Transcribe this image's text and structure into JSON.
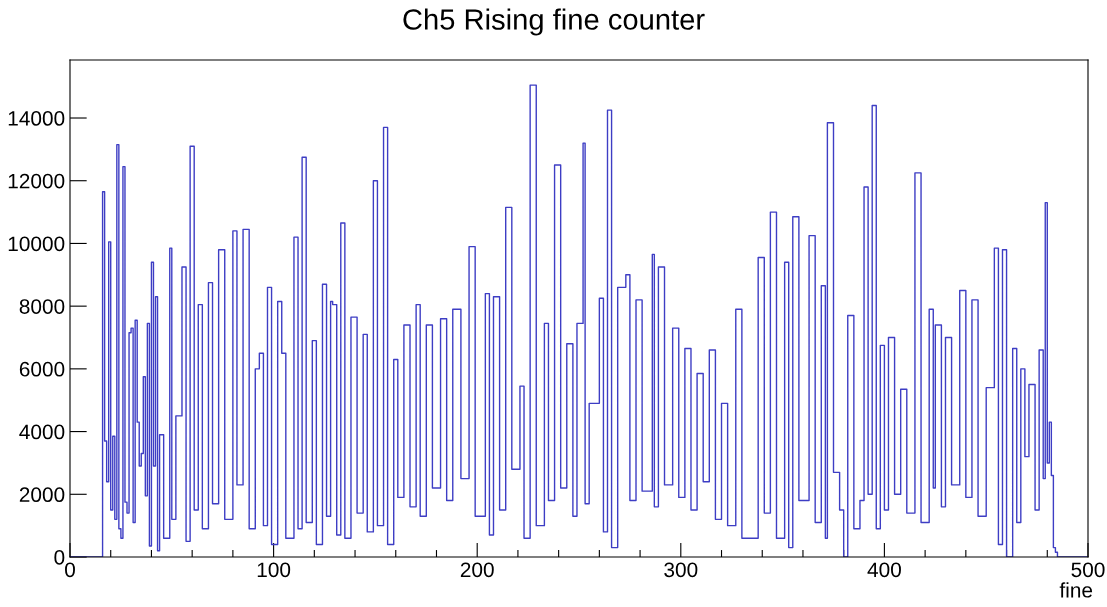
{
  "chart_data": {
    "type": "step",
    "title": "Ch5 Rising fine counter",
    "xlabel": "fine",
    "color": "#3d3dc4",
    "grid": false,
    "xlim": [
      0,
      500
    ],
    "ylim": [
      0,
      15850
    ],
    "xticks": [
      0,
      {
        "value": 20,
        "label": null
      },
      {
        "value": 40,
        "label": null
      },
      {
        "value": 60,
        "label": null
      },
      {
        "value": 80,
        "label": null
      },
      100,
      {
        "value": 120,
        "label": null
      },
      {
        "value": 140,
        "label": null
      },
      {
        "value": 160,
        "label": null
      },
      {
        "value": 180,
        "label": null
      },
      200,
      {
        "value": 220,
        "label": null
      },
      {
        "value": 240,
        "label": null
      },
      {
        "value": 260,
        "label": null
      },
      {
        "value": 280,
        "label": null
      },
      300,
      {
        "value": 320,
        "label": null
      },
      {
        "value": 340,
        "label": null
      },
      {
        "value": 360,
        "label": null
      },
      {
        "value": 380,
        "label": null
      },
      400,
      {
        "value": 420,
        "label": null
      },
      {
        "value": 440,
        "label": null
      },
      {
        "value": 460,
        "label": null
      },
      {
        "value": 480,
        "label": null
      },
      500
    ],
    "yticks": [
      0,
      2000,
      4000,
      6000,
      8000,
      10000,
      12000,
      14000
    ],
    "x": [
      0,
      16,
      17,
      18,
      19,
      20,
      21,
      22,
      23,
      24,
      25,
      26,
      27,
      28,
      29,
      30,
      31,
      32,
      33,
      34,
      35,
      36,
      37,
      38,
      39,
      40,
      41,
      42,
      43,
      44,
      46,
      49,
      50,
      52,
      55,
      57,
      59,
      61,
      63,
      65,
      68,
      70,
      73,
      76,
      80,
      82,
      85,
      88,
      91,
      93,
      95,
      97,
      99,
      102,
      104,
      106,
      110,
      112,
      114,
      116,
      119,
      121,
      124,
      126,
      128,
      129,
      131,
      133,
      135,
      138,
      141,
      144,
      146,
      149,
      151,
      154,
      156,
      159,
      161,
      164,
      167,
      170,
      172,
      175,
      178,
      182,
      185,
      188,
      192,
      196,
      199,
      204,
      206,
      208,
      211,
      214,
      217,
      221,
      223,
      226,
      229,
      233,
      235,
      238,
      241,
      244,
      247,
      249,
      252,
      253,
      255,
      260,
      262,
      264,
      266,
      269,
      273,
      275,
      278,
      281,
      286,
      287,
      289,
      292,
      296,
      299,
      302,
      305,
      308,
      311,
      314,
      317,
      320,
      323,
      327,
      330,
      338,
      341,
      344,
      347,
      351,
      353,
      355,
      358,
      363,
      366,
      369,
      371,
      372,
      375,
      378,
      380,
      382,
      385,
      388,
      390,
      392,
      394,
      396,
      398,
      400,
      402,
      405,
      408,
      411,
      415,
      418,
      422,
      424,
      425,
      428,
      430,
      433,
      437,
      440,
      443,
      446,
      450,
      454,
      456,
      458,
      460,
      463,
      465,
      467,
      469,
      471,
      474,
      476,
      478,
      479,
      480,
      481,
      482,
      483,
      484,
      485,
      500
    ],
    "values": [
      0,
      11650,
      3700,
      2400,
      10050,
      1500,
      3850,
      1200,
      13150,
      900,
      600,
      12450,
      1750,
      1400,
      7150,
      7300,
      1100,
      7550,
      4300,
      2900,
      3300,
      5750,
      1950,
      7450,
      350,
      9400,
      2900,
      8300,
      200,
      3900,
      600,
      9850,
      1200,
      4500,
      9250,
      500,
      13100,
      1500,
      8050,
      900,
      8750,
      1700,
      9800,
      1200,
      10400,
      2300,
      10450,
      900,
      6000,
      6500,
      1000,
      8600,
      400,
      8150,
      6500,
      600,
      10200,
      900,
      12750,
      1100,
      6900,
      400,
      8700,
      1300,
      8150,
      8050,
      700,
      10650,
      600,
      7650,
      1400,
      7100,
      800,
      12000,
      1000,
      13700,
      400,
      6300,
      1900,
      7400,
      1600,
      8050,
      1300,
      7400,
      2200,
      7600,
      1800,
      7900,
      2500,
      9900,
      1300,
      8400,
      700,
      8300,
      1500,
      11150,
      2800,
      5450,
      600,
      15050,
      1000,
      7450,
      1800,
      12500,
      2200,
      6800,
      1300,
      7450,
      13200,
      1700,
      4900,
      8250,
      800,
      14250,
      300,
      8600,
      9000,
      1800,
      8200,
      2100,
      9650,
      1600,
      9250,
      2300,
      7300,
      1900,
      6650,
      1500,
      5850,
      2400,
      6600,
      1200,
      4900,
      1000,
      7900,
      600,
      9550,
      1400,
      11000,
      600,
      9400,
      300,
      10850,
      1800,
      10250,
      1100,
      8650,
      600,
      13850,
      2700,
      1500,
      0,
      7700,
      900,
      1800,
      11800,
      2000,
      14400,
      900,
      6750,
      1500,
      7000,
      2000,
      5350,
      1400,
      12250,
      1100,
      7900,
      2200,
      7400,
      1600,
      7000,
      2300,
      8500,
      1900,
      8200,
      1300,
      5400,
      9850,
      400,
      9800,
      0,
      6650,
      1100,
      6000,
      3200,
      5500,
      1500,
      6600,
      2500,
      11300,
      3000,
      4300,
      2600,
      300,
      150,
      0,
      0
    ]
  }
}
